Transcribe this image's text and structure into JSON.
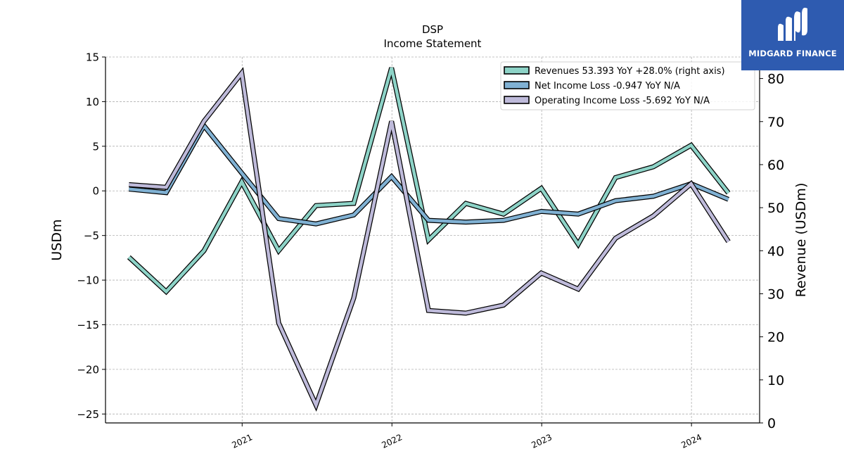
{
  "chart_data": {
    "type": "line",
    "title": "DSP",
    "subtitle": "Income Statement",
    "ylabel": "USDm",
    "y2label": "Revenue (USDm)",
    "ylim": [
      -26,
      15
    ],
    "y2lim": [
      0,
      85
    ],
    "yticks": [
      15,
      10,
      5,
      0,
      -5,
      -10,
      -15,
      -20,
      -25
    ],
    "y2ticks": [
      0,
      10,
      20,
      30,
      40,
      50,
      60,
      70,
      80
    ],
    "xlim": [
      "2020-02-03",
      "2024-06-15"
    ],
    "xticks": [
      {
        "date": "2021-01-01",
        "label": "2021"
      },
      {
        "date": "2022-01-01",
        "label": "2022"
      },
      {
        "date": "2023-01-01",
        "label": "2023"
      },
      {
        "date": "2024-01-01",
        "label": "2024"
      }
    ],
    "grid": true,
    "legend_position": "top-right",
    "x": [
      "2020-03-31",
      "2020-06-30",
      "2020-09-30",
      "2020-12-31",
      "2021-03-31",
      "2021-06-30",
      "2021-09-30",
      "2021-12-31",
      "2022-03-31",
      "2022-06-30",
      "2022-09-30",
      "2022-12-31",
      "2023-03-31",
      "2023-06-30",
      "2023-09-30",
      "2023-12-31",
      "2024-03-31"
    ],
    "series": [
      {
        "name": "Revenues",
        "legend": "Revenues  53.393 YoY +28.0% (right axis)",
        "axis": "right",
        "color": "#8dd3c7",
        "values": [
          38.5,
          30.5,
          40.0,
          56.0,
          40.0,
          50.5,
          51.0,
          82.5,
          42.5,
          51.0,
          48.5,
          54.5,
          41.5,
          57.0,
          59.5,
          64.5,
          53.4
        ]
      },
      {
        "name": "Net Income Loss",
        "legend": "Net Income Loss  -0.947 YoY N/A",
        "axis": "left",
        "color": "#80b1d3",
        "values": [
          0.2,
          -0.2,
          7.3,
          2.0,
          -3.1,
          -3.7,
          -2.7,
          1.6,
          -3.3,
          -3.5,
          -3.3,
          -2.3,
          -2.6,
          -1.1,
          -0.6,
          0.8,
          -0.947
        ]
      },
      {
        "name": "Operating Income Loss",
        "legend": "Operating Income Loss  -5.692 YoY N/A",
        "axis": "left",
        "color": "#bebada",
        "values": [
          0.7,
          0.4,
          7.8,
          13.2,
          -14.8,
          -24.0,
          -12.0,
          7.8,
          -13.4,
          -13.7,
          -12.8,
          -9.2,
          -11.0,
          -5.3,
          -2.8,
          0.8,
          -5.692
        ]
      }
    ]
  },
  "logo": {
    "text": "MIDGARD FINANCE",
    "color": "#2e5bb0"
  }
}
